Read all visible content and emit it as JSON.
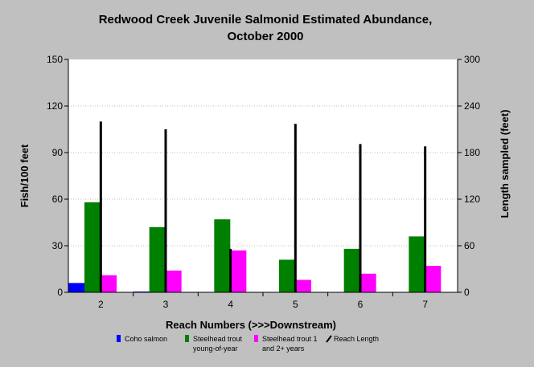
{
  "chart_data": {
    "type": "bar",
    "title": "Redwood Creek Juvenile Salmonid Estimated Abundance,",
    "subtitle": "October 2000",
    "xlabel": "Reach Numbers (>>>Downstream)",
    "ylabel": "Fish/100 feet",
    "y2label": "Length sampled (feet)",
    "ylim": [
      0,
      150
    ],
    "y2lim": [
      0,
      300
    ],
    "yticks": [
      "0",
      "30",
      "60",
      "90",
      "120",
      "150"
    ],
    "y2ticks": [
      "0",
      "60",
      "120",
      "180",
      "240",
      "300"
    ],
    "categories": [
      "2",
      "3",
      "4",
      "5",
      "6",
      "7"
    ],
    "series": [
      {
        "name": "Coho salmon",
        "axis": "left",
        "color": "#0000ff",
        "values": [
          6,
          0.5,
          0,
          0,
          0,
          0
        ]
      },
      {
        "name": "Steelhead trout young-of-year",
        "axis": "left",
        "color": "#008000",
        "values": [
          58,
          42,
          47,
          21,
          28,
          36
        ]
      },
      {
        "name": "Steelhead trout 1 and 2+ years",
        "axis": "left",
        "color": "#ff00ff",
        "values": [
          11,
          14,
          27,
          8,
          12,
          17
        ]
      },
      {
        "name": "Reach Length",
        "axis": "right",
        "color": "#000000",
        "values": [
          220,
          210,
          56,
          217,
          191,
          188
        ]
      }
    ],
    "legend": [
      {
        "lines": [
          "Coho salmon"
        ],
        "color": "#0000ff",
        "shape": "square"
      },
      {
        "lines": [
          "Steelhead trout",
          "young-of-year"
        ],
        "color": "#008000",
        "shape": "square"
      },
      {
        "lines": [
          "Steelhead trout 1",
          "and 2+ years"
        ],
        "color": "#ff00ff",
        "shape": "square"
      },
      {
        "lines": [
          "Reach Length"
        ],
        "color": "#000000",
        "shape": "slash"
      }
    ],
    "legend_position": "bottom",
    "background_color": "#c0c0c0",
    "plot_background": "#ffffff"
  }
}
